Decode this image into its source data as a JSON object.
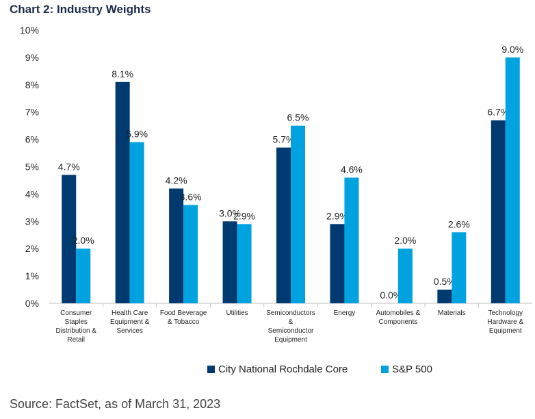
{
  "title": "Chart 2: Industry Weights",
  "source": "Source: FactSet, as of March 31, 2023",
  "chart_data": {
    "type": "bar",
    "title": "Chart 2: Industry Weights",
    "ylim": [
      0,
      10
    ],
    "yticks": [
      "0%",
      "1%",
      "2%",
      "3%",
      "4%",
      "5%",
      "6%",
      "7%",
      "8%",
      "9%",
      "10%"
    ],
    "grid": false,
    "legend_position": "bottom",
    "categories": [
      [
        "Consumer",
        "Staples",
        "Distribution &",
        "Retail"
      ],
      [
        "Health Care",
        "Equipment &",
        "Services"
      ],
      [
        "Food Beverage",
        "& Tobacco"
      ],
      [
        "Utilities"
      ],
      [
        "Semiconductors",
        "&",
        "Semiconductor",
        "Equipment"
      ],
      [
        "Energy"
      ],
      [
        "Automobiles &",
        "Components"
      ],
      [
        "Materials"
      ],
      [
        "Technology",
        "Hardware &",
        "Equipment"
      ]
    ],
    "series": [
      {
        "name": "City National Rochdale Core",
        "color": "#003a70",
        "values": [
          4.7,
          8.1,
          4.2,
          3.0,
          5.7,
          2.9,
          0.0,
          0.5,
          6.7
        ],
        "labels": [
          "4.7%",
          "8.1%",
          "4.2%",
          "3.0%",
          "5.7%",
          "2.9%",
          "0.0%",
          "0.5%",
          "6.7%"
        ]
      },
      {
        "name": "S&P 500",
        "color": "#00a3e0",
        "values": [
          2.0,
          5.9,
          3.6,
          2.9,
          6.5,
          4.6,
          2.0,
          2.6,
          9.0
        ],
        "labels": [
          "2.0%",
          "5.9%",
          "3.6%",
          "2.9%",
          "6.5%",
          "4.6%",
          "2.0%",
          "2.6%",
          "9.0%"
        ]
      }
    ]
  }
}
